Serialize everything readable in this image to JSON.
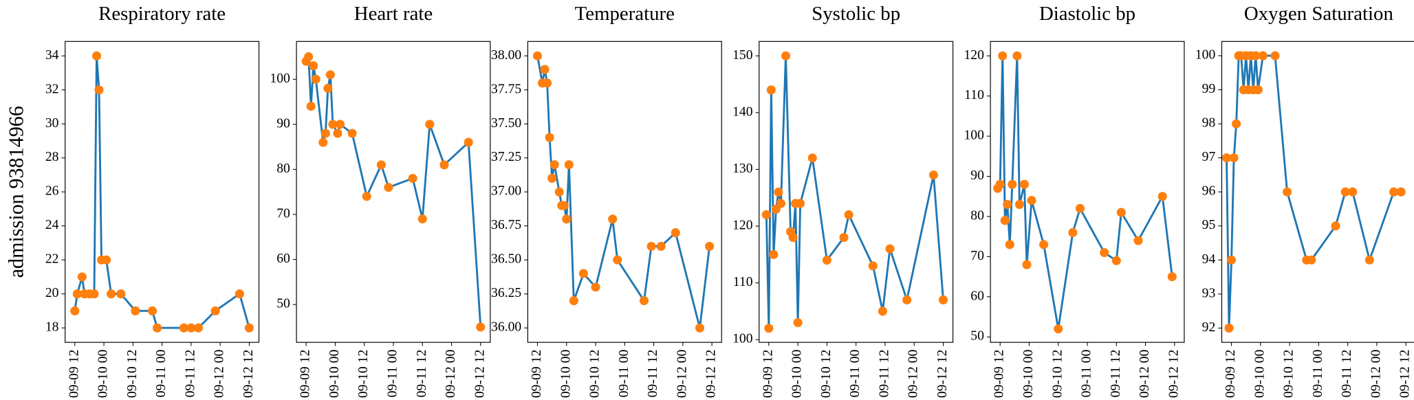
{
  "row_label": "admission 93814966",
  "chart_data": [
    {
      "type": "line",
      "title": "Respiratory rate",
      "x": [
        "09-09 12",
        "09-09 13",
        "09-09 15",
        "09-09 16",
        "09-09 18",
        "09-09 20",
        "09-09 21",
        "09-09 22",
        "09-09 23",
        "09-10 01",
        "09-10 03",
        "09-10 07",
        "09-10 13",
        "09-10 20",
        "09-10 22",
        "09-11 09",
        "09-11 12",
        "09-11 15",
        "09-11 22",
        "09-12 08",
        "09-12 12"
      ],
      "series": [
        {
          "color": "#1f77b4",
          "marker_color": "#ff7f0e",
          "values": [
            19,
            20,
            21,
            20,
            20,
            20,
            34,
            32,
            22,
            22,
            20,
            20,
            19,
            19,
            18,
            18,
            18,
            18,
            19,
            20,
            18
          ]
        }
      ],
      "xlim": [
        "09-09 08",
        "09-12 16"
      ],
      "xticks": [
        "09-09 12",
        "09-10 00",
        "09-10 12",
        "09-11 00",
        "09-11 12",
        "09-12 00",
        "09-12 12"
      ],
      "ylim": [
        17.15,
        34.85
      ],
      "yticks": [
        18,
        20,
        22,
        24,
        26,
        28,
        30,
        32,
        34
      ]
    },
    {
      "type": "line",
      "title": "Heart rate",
      "x": [
        "09-09 12",
        "09-09 13",
        "09-09 14",
        "09-09 15",
        "09-09 16",
        "09-09 19",
        "09-09 20",
        "09-09 21",
        "09-09 22",
        "09-09 23",
        "09-10 01",
        "09-10 02",
        "09-10 07",
        "09-10 13",
        "09-10 19",
        "09-10 22",
        "09-11 08",
        "09-11 12",
        "09-11 15",
        "09-11 21",
        "09-12 07",
        "09-12 12"
      ],
      "series": [
        {
          "color": "#1f77b4",
          "marker_color": "#ff7f0e",
          "values": [
            104,
            105,
            94,
            103,
            100,
            86,
            88,
            98,
            101,
            90,
            88,
            90,
            88,
            74,
            81,
            76,
            78,
            69,
            90,
            81,
            86,
            45
          ]
        }
      ],
      "xlim": [
        "09-09 08",
        "09-12 16"
      ],
      "xticks": [
        "09-09 12",
        "09-10 00",
        "09-10 12",
        "09-11 00",
        "09-11 12",
        "09-12 00",
        "09-12 12"
      ],
      "ylim": [
        41.6,
        108.4
      ],
      "yticks": [
        50,
        60,
        70,
        80,
        90,
        100
      ]
    },
    {
      "type": "line",
      "title": "Temperature",
      "x": [
        "09-09 12",
        "09-09 14",
        "09-09 15",
        "09-09 16",
        "09-09 17",
        "09-09 18",
        "09-09 19",
        "09-09 21",
        "09-09 22",
        "09-09 23",
        "09-10 00",
        "09-10 01",
        "09-10 03",
        "09-10 07",
        "09-10 12",
        "09-10 19",
        "09-10 21",
        "09-11 08",
        "09-11 11",
        "09-11 15",
        "09-11 21",
        "09-12 07",
        "09-12 11"
      ],
      "series": [
        {
          "color": "#1f77b4",
          "marker_color": "#ff7f0e",
          "values": [
            38.0,
            37.8,
            37.9,
            37.8,
            37.4,
            37.1,
            37.2,
            37.0,
            36.9,
            36.9,
            36.8,
            37.2,
            36.2,
            36.4,
            36.3,
            36.8,
            36.5,
            36.2,
            36.6,
            36.6,
            36.7,
            36.0,
            36.6
          ]
        }
      ],
      "xlim": [
        "09-09 08",
        "09-12 16"
      ],
      "xticks": [
        "09-09 12",
        "09-10 00",
        "09-10 12",
        "09-11 00",
        "09-11 12",
        "09-12 00",
        "09-12 12"
      ],
      "ylim": [
        35.894,
        38.106
      ],
      "yticks": [
        {
          "value": 36,
          "label": "36.00"
        },
        36.25,
        {
          "value": 36.5,
          "label": "36.50"
        },
        36.75,
        {
          "value": 37,
          "label": "37.00"
        },
        37.25,
        {
          "value": 37.5,
          "label": "37.50"
        },
        37.75,
        {
          "value": 38,
          "label": "38.00"
        }
      ]
    },
    {
      "type": "line",
      "title": "Systolic bp",
      "x": [
        "09-09 11",
        "09-09 12",
        "09-09 13",
        "09-09 14",
        "09-09 15",
        "09-09 16",
        "09-09 17",
        "09-09 19",
        "09-09 21",
        "09-09 22",
        "09-09 23",
        "09-10 00",
        "09-10 01",
        "09-10 06",
        "09-10 12",
        "09-10 19",
        "09-10 21",
        "09-11 07",
        "09-11 11",
        "09-11 14",
        "09-11 21",
        "09-12 08",
        "09-12 12"
      ],
      "series": [
        {
          "color": "#1f77b4",
          "marker_color": "#ff7f0e",
          "values": [
            122,
            102,
            144,
            115,
            123,
            126,
            124,
            150,
            119,
            118,
            124,
            103,
            124,
            132,
            114,
            118,
            122,
            113,
            105,
            116,
            107,
            129,
            107
          ]
        }
      ],
      "xlim": [
        "09-09 08",
        "09-12 16"
      ],
      "xticks": [
        "09-09 12",
        "09-10 00",
        "09-10 12",
        "09-11 00",
        "09-11 12",
        "09-12 00",
        "09-12 12"
      ],
      "ylim": [
        99.52,
        152.54
      ],
      "yticks": [
        100,
        110,
        120,
        130,
        140,
        150
      ]
    },
    {
      "type": "line",
      "title": "Diastolic bp",
      "x": [
        "09-09 11",
        "09-09 12",
        "09-09 13",
        "09-09 14",
        "09-09 15",
        "09-09 16",
        "09-09 17",
        "09-09 19",
        "09-09 20",
        "09-09 22",
        "09-09 23",
        "09-10 01",
        "09-10 06",
        "09-10 12",
        "09-10 18",
        "09-10 21",
        "09-11 07",
        "09-11 12",
        "09-11 14",
        "09-11 21",
        "09-12 07",
        "09-12 11"
      ],
      "series": [
        {
          "color": "#1f77b4",
          "marker_color": "#ff7f0e",
          "values": [
            87,
            88,
            120,
            79,
            83,
            73,
            88,
            120,
            83,
            88,
            68,
            84,
            73,
            52,
            76,
            82,
            71,
            69,
            81,
            74,
            85,
            65
          ]
        }
      ],
      "xlim": [
        "09-09 08",
        "09-12 16"
      ],
      "xticks": [
        "09-09 12",
        "09-10 00",
        "09-10 12",
        "09-11 00",
        "09-11 12",
        "09-12 00",
        "09-12 12"
      ],
      "ylim": [
        48.65,
        123.59
      ],
      "yticks": [
        50,
        60,
        70,
        80,
        90,
        100,
        110,
        120
      ]
    },
    {
      "type": "line",
      "title": "Oxygen Saturation",
      "x": [
        "09-09 10",
        "09-09 11",
        "09-09 12",
        "09-09 13",
        "09-09 14",
        "09-09 15",
        "09-09 16",
        "09-09 17",
        "09-09 18",
        "09-09 19",
        "09-09 20",
        "09-09 21",
        "09-09 22",
        "09-09 23",
        "09-10 01",
        "09-10 06",
        "09-10 11",
        "09-10 19",
        "09-10 21",
        "09-11 07",
        "09-11 11",
        "09-11 14",
        "09-11 21",
        "09-12 07",
        "09-12 10"
      ],
      "series": [
        {
          "color": "#1f77b4",
          "marker_color": "#ff7f0e",
          "values": [
            97,
            92,
            94,
            97,
            98,
            100,
            100,
            99,
            100,
            99,
            100,
            99,
            100,
            99,
            100,
            100,
            96,
            94,
            94,
            95,
            96,
            96,
            94,
            96,
            96
          ]
        }
      ],
      "xlim": [
        "09-09 08",
        "09-12 16"
      ],
      "xticks": [
        "09-09 12",
        "09-10 00",
        "09-10 12",
        "09-11 00",
        "09-11 12",
        "09-12 00",
        "09-12 12"
      ],
      "ylim": [
        91.58,
        100.42
      ],
      "yticks": [
        92,
        93,
        94,
        95,
        96,
        97,
        98,
        99,
        100
      ]
    }
  ]
}
